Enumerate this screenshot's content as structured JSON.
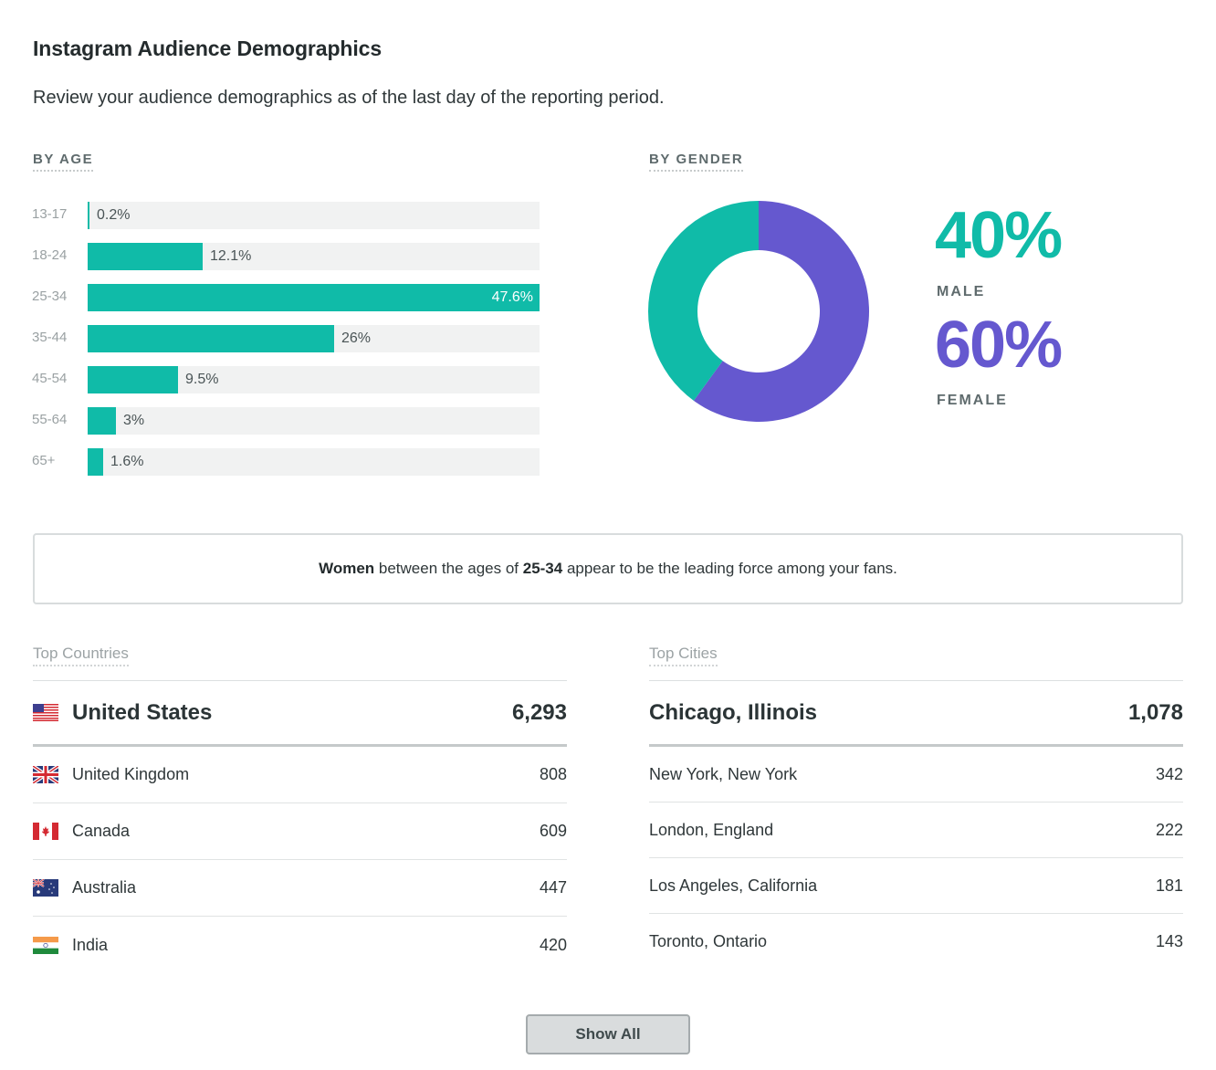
{
  "header": {
    "title": "Instagram Audience Demographics",
    "subtitle": "Review your audience demographics as of the last day of the reporting period."
  },
  "by_age": {
    "label": "BY AGE"
  },
  "by_gender": {
    "label": "BY GENDER",
    "male": {
      "percent_label": "40%",
      "name": "MALE",
      "value": 40,
      "color": "#10bba8"
    },
    "female": {
      "percent_label": "60%",
      "name": "FEMALE",
      "value": 60,
      "color": "#6558cf"
    }
  },
  "chart_data": [
    {
      "type": "bar",
      "title": "BY AGE",
      "orientation": "horizontal",
      "categories": [
        "13-17",
        "18-24",
        "25-34",
        "35-44",
        "45-54",
        "55-64",
        "65+"
      ],
      "values": [
        0.2,
        12.1,
        47.6,
        26,
        9.5,
        3,
        1.6
      ],
      "value_labels": [
        "0.2%",
        "12.1%",
        "47.6%",
        "26%",
        "9.5%",
        "3%",
        "1.6%"
      ],
      "xlim": [
        0,
        47.6
      ],
      "color": "#10bba8",
      "track_color": "#f1f2f2",
      "grid": false
    },
    {
      "type": "pie",
      "title": "BY GENDER",
      "donut": true,
      "categories": [
        "Female",
        "Male"
      ],
      "values": [
        60,
        40
      ],
      "colors": [
        "#6558cf",
        "#10bba8"
      ],
      "start": "top, clockwise"
    }
  ],
  "insight": {
    "part1_bold": "Women",
    "part2": " between the ages of ",
    "part3_bold": "25-34",
    "part4": " appear to be the leading force among your fans."
  },
  "top_countries": {
    "heading": "Top Countries",
    "top": {
      "name": "United States",
      "count": "6,293",
      "flag": "flag-us-icon"
    },
    "rows": [
      {
        "name": "United Kingdom",
        "count": "808",
        "flag": "flag-uk-icon"
      },
      {
        "name": "Canada",
        "count": "609",
        "flag": "flag-ca-icon"
      },
      {
        "name": "Australia",
        "count": "447",
        "flag": "flag-au-icon"
      },
      {
        "name": "India",
        "count": "420",
        "flag": "flag-in-icon"
      }
    ]
  },
  "top_cities": {
    "heading": "Top Cities",
    "top": {
      "name": "Chicago, Illinois",
      "count": "1,078"
    },
    "rows": [
      {
        "name": "New York, New York",
        "count": "342"
      },
      {
        "name": "London, England",
        "count": "222"
      },
      {
        "name": "Los Angeles, California",
        "count": "181"
      },
      {
        "name": "Toronto, Ontario",
        "count": "143"
      }
    ]
  },
  "footer": {
    "show_all_label": "Show All"
  }
}
